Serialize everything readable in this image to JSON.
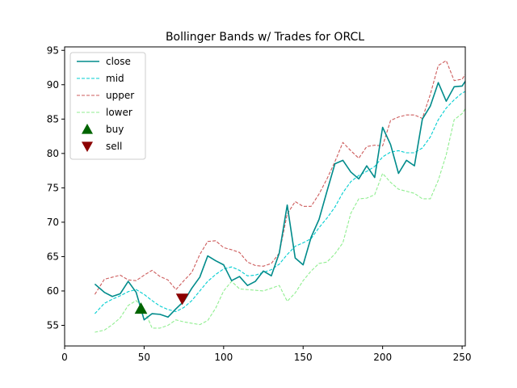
{
  "chart_data": {
    "type": "line",
    "title": "Bollinger Bands w/ Trades for ORCL",
    "xlabel": "",
    "ylabel": "",
    "xlim": [
      0,
      252
    ],
    "ylim": [
      52,
      95.5
    ],
    "xticks": [
      0,
      50,
      100,
      150,
      200,
      250
    ],
    "yticks": [
      55,
      60,
      65,
      70,
      75,
      80,
      85,
      90,
      95
    ],
    "grid": false,
    "legend_position": "top-left",
    "x": [
      19,
      25,
      30,
      35,
      40,
      45,
      50,
      55,
      60,
      65,
      70,
      75,
      80,
      85,
      90,
      95,
      100,
      105,
      110,
      115,
      120,
      125,
      130,
      135,
      140,
      145,
      150,
      155,
      160,
      165,
      170,
      175,
      180,
      185,
      190,
      195,
      200,
      205,
      210,
      215,
      220,
      225,
      230,
      235,
      240,
      245,
      250,
      252
    ],
    "series": [
      {
        "name": "close",
        "color": "#008b8b",
        "style": "solid",
        "values": [
          61.0,
          59.8,
          59.2,
          59.6,
          61.4,
          59.8,
          55.8,
          56.7,
          56.6,
          56.2,
          57.4,
          58.5,
          60.4,
          62.0,
          65.1,
          64.4,
          63.8,
          61.5,
          62.1,
          60.8,
          61.4,
          62.9,
          62.2,
          65.5,
          72.5,
          64.8,
          63.8,
          67.8,
          70.4,
          74.5,
          78.5,
          79.0,
          77.3,
          76.3,
          78.2,
          76.5,
          83.8,
          81.3,
          77.1,
          79.0,
          78.2,
          85.0,
          86.9,
          90.3,
          87.6,
          89.7,
          89.8,
          90.5
        ]
      },
      {
        "name": "mid",
        "color": "#00ced1",
        "style": "dashed",
        "values": [
          56.7,
          58.2,
          58.8,
          59.3,
          59.9,
          60.2,
          59.5,
          58.6,
          57.8,
          57.3,
          57.0,
          57.6,
          58.6,
          60.0,
          61.4,
          62.4,
          63.2,
          63.5,
          63.0,
          62.2,
          62.3,
          62.7,
          63.1,
          63.9,
          65.3,
          66.5,
          67.0,
          67.6,
          69.2,
          70.6,
          72.2,
          74.3,
          75.9,
          76.8,
          77.4,
          78.1,
          79.5,
          80.2,
          80.4,
          80.1,
          80.1,
          80.8,
          82.4,
          84.9,
          86.6,
          87.8,
          88.8,
          89.0
        ]
      },
      {
        "name": "upper",
        "color": "#cd5c5c",
        "style": "dashed",
        "values": [
          59.5,
          61.7,
          62.0,
          62.3,
          61.6,
          61.5,
          62.3,
          63.0,
          62.1,
          61.6,
          60.2,
          61.5,
          62.7,
          65.3,
          67.2,
          67.3,
          66.3,
          66.0,
          65.6,
          64.2,
          63.7,
          63.6,
          64.0,
          65.5,
          71.2,
          73.0,
          72.3,
          72.3,
          74.1,
          76.3,
          78.8,
          81.6,
          80.4,
          79.3,
          81.0,
          81.2,
          81.1,
          84.8,
          85.3,
          85.6,
          85.6,
          85.1,
          88.6,
          92.8,
          93.5,
          90.6,
          90.8,
          91.5
        ]
      },
      {
        "name": "lower",
        "color": "#90ee90",
        "style": "dashed",
        "values": [
          54.0,
          54.3,
          55.1,
          56.1,
          57.9,
          58.6,
          57.3,
          54.6,
          54.6,
          55.0,
          55.8,
          55.5,
          55.3,
          55.1,
          55.7,
          57.5,
          60.0,
          61.4,
          60.3,
          60.2,
          60.1,
          60.0,
          60.4,
          60.8,
          58.5,
          59.7,
          61.5,
          62.9,
          64.0,
          64.2,
          65.4,
          67.0,
          71.3,
          73.4,
          73.5,
          74.0,
          77.1,
          75.8,
          74.8,
          74.5,
          74.2,
          73.4,
          73.4,
          76.1,
          79.8,
          84.9,
          85.8,
          86.5
        ]
      }
    ],
    "markers": [
      {
        "name": "buy",
        "color": "#006400",
        "symbol": "triangle-up",
        "points": [
          {
            "x": 48,
            "y": 57.4
          }
        ]
      },
      {
        "name": "sell",
        "color": "#8b0000",
        "symbol": "triangle-down",
        "points": [
          {
            "x": 74,
            "y": 58.9
          }
        ]
      }
    ]
  }
}
